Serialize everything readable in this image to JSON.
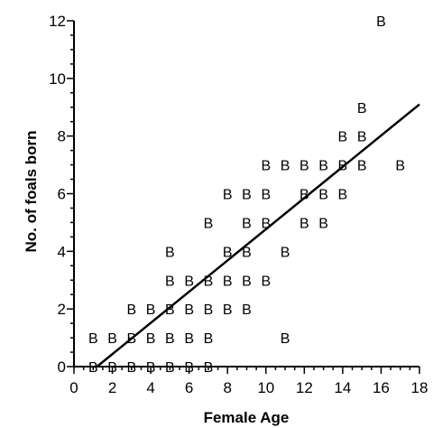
{
  "chart_data": {
    "type": "scatter",
    "title": "",
    "xlabel": "Female Age",
    "ylabel": "No. of foals born",
    "xlim": [
      0,
      18
    ],
    "ylim": [
      0,
      12
    ],
    "x_ticks": [
      "0",
      "2",
      "4",
      "6",
      "8",
      "10",
      "12",
      "14",
      "16",
      "18"
    ],
    "y_ticks": [
      "0",
      "2",
      "4",
      "6",
      "8",
      "10",
      "12"
    ],
    "grid": false,
    "marker_label": "B",
    "points": [
      [
        1,
        0
      ],
      [
        2,
        0
      ],
      [
        3,
        0
      ],
      [
        4,
        0
      ],
      [
        5,
        0
      ],
      [
        6,
        0
      ],
      [
        7,
        0
      ],
      [
        1,
        1
      ],
      [
        2,
        1
      ],
      [
        3,
        1
      ],
      [
        4,
        1
      ],
      [
        5,
        1
      ],
      [
        6,
        1
      ],
      [
        7,
        1
      ],
      [
        11,
        1
      ],
      [
        3,
        2
      ],
      [
        4,
        2
      ],
      [
        5,
        2
      ],
      [
        6,
        2
      ],
      [
        7,
        2
      ],
      [
        8,
        2
      ],
      [
        9,
        2
      ],
      [
        5,
        3
      ],
      [
        6,
        3
      ],
      [
        7,
        3
      ],
      [
        8,
        3
      ],
      [
        9,
        3
      ],
      [
        10,
        3
      ],
      [
        5,
        4
      ],
      [
        8,
        4
      ],
      [
        9,
        4
      ],
      [
        11,
        4
      ],
      [
        7,
        5
      ],
      [
        9,
        5
      ],
      [
        10,
        5
      ],
      [
        12,
        5
      ],
      [
        13,
        5
      ],
      [
        8,
        6
      ],
      [
        9,
        6
      ],
      [
        10,
        6
      ],
      [
        12,
        6
      ],
      [
        13,
        6
      ],
      [
        14,
        6
      ],
      [
        10,
        7
      ],
      [
        11,
        7
      ],
      [
        12,
        7
      ],
      [
        13,
        7
      ],
      [
        14,
        7
      ],
      [
        15,
        7
      ],
      [
        17,
        7
      ],
      [
        14,
        8
      ],
      [
        15,
        8
      ],
      [
        15,
        9
      ],
      [
        16,
        12
      ]
    ],
    "regression_line": {
      "x": [
        1.2,
        18
      ],
      "y": [
        0,
        9.1
      ]
    }
  }
}
